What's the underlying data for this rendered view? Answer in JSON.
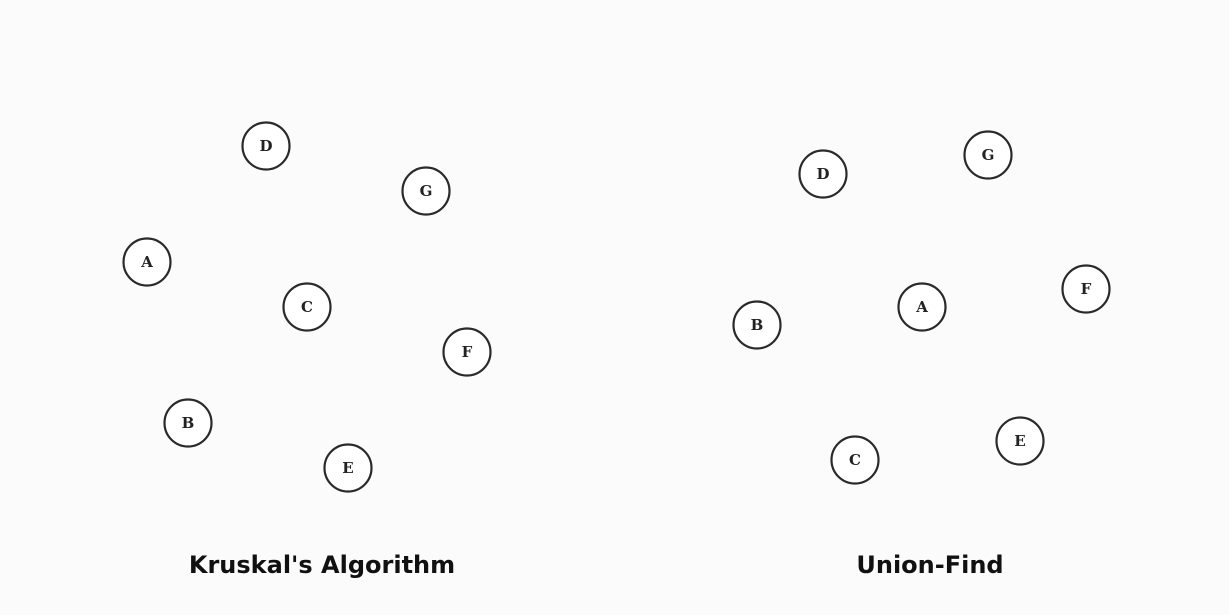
{
  "colors": {
    "background": "#fbfbfb",
    "node_fill": "#ffffff",
    "node_stroke": "#2a2a2a",
    "text": "#111111"
  },
  "left_graph": {
    "caption": "Kruskal's Algorithm",
    "nodes": [
      {
        "id": "D",
        "label": "D"
      },
      {
        "id": "G",
        "label": "G"
      },
      {
        "id": "A",
        "label": "A"
      },
      {
        "id": "C",
        "label": "C"
      },
      {
        "id": "F",
        "label": "F"
      },
      {
        "id": "B",
        "label": "B"
      },
      {
        "id": "E",
        "label": "E"
      }
    ]
  },
  "right_graph": {
    "caption": "Union-Find",
    "nodes": [
      {
        "id": "D",
        "label": "D"
      },
      {
        "id": "G",
        "label": "G"
      },
      {
        "id": "B",
        "label": "B"
      },
      {
        "id": "A",
        "label": "A"
      },
      {
        "id": "F",
        "label": "F"
      },
      {
        "id": "C",
        "label": "C"
      },
      {
        "id": "E",
        "label": "E"
      }
    ]
  }
}
